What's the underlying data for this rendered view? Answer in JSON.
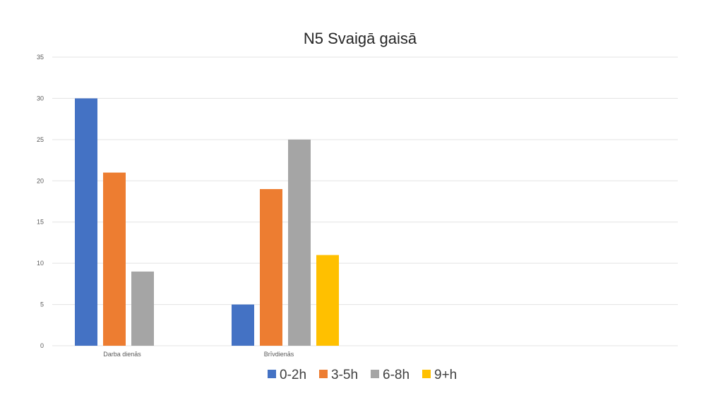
{
  "chart_data": {
    "type": "bar",
    "title": "N5 Svaigā gaisā",
    "categories": [
      "Darba dienās",
      "Brīvdienās"
    ],
    "series": [
      {
        "name": "0-2h",
        "values": [
          30,
          5
        ],
        "color": "#4472C4"
      },
      {
        "name": "3-5h",
        "values": [
          21,
          19
        ],
        "color": "#ED7D31"
      },
      {
        "name": "6-8h",
        "values": [
          9,
          25
        ],
        "color": "#A5A5A5"
      },
      {
        "name": "9+h",
        "values": [
          0,
          11
        ],
        "color": "#FFC000"
      }
    ],
    "ylim": [
      0,
      35
    ],
    "yticks": [
      0,
      5,
      10,
      15,
      20,
      25,
      30,
      35
    ],
    "xlabel": "",
    "ylabel": "",
    "grid": true,
    "legend": "bottom"
  }
}
